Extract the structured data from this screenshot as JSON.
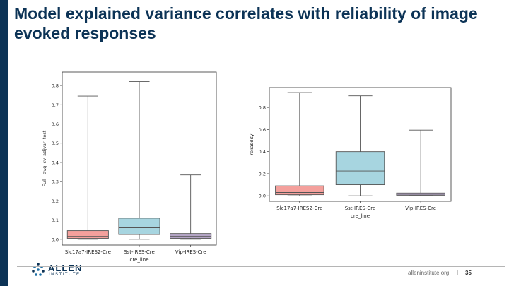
{
  "slide": {
    "title": "Model explained variance correlates with reliability of image evoked responses",
    "footer_url": "alleninstitute.org",
    "footer_separator": "|",
    "page_number": "35",
    "logo": {
      "text_main": "ALLEN",
      "text_sub": "INSTITUTE",
      "icon": "allen-logo-icon"
    },
    "colors": {
      "brand": "#0c3356",
      "slc": "#f4a09c",
      "sst": "#a7d5e0",
      "vip": "#b3a4c4"
    }
  },
  "chart_data": [
    {
      "type": "box",
      "xlabel": "cre_line",
      "ylabel": "Full__avg_cv_adjvar_test",
      "categories": [
        "Slc17a7-IRES2-Cre",
        "Sst-IRES-Cre",
        "Vip-IRES-Cre"
      ],
      "yticks": [
        "0.0",
        "0.1",
        "0.2",
        "0.3",
        "0.4",
        "0.5",
        "0.6",
        "0.7",
        "0.8"
      ],
      "ylim": [
        -0.03,
        0.87
      ],
      "boxes": [
        {
          "name": "Slc17a7-IRES2-Cre",
          "whisker_low": 0.0,
          "q1": 0.005,
          "median": 0.015,
          "q3": 0.045,
          "whisker_high": 0.745,
          "color": "#f4a09c"
        },
        {
          "name": "Sst-IRES-Cre",
          "whisker_low": 0.0,
          "q1": 0.025,
          "median": 0.06,
          "q3": 0.11,
          "whisker_high": 0.82,
          "color": "#a7d5e0"
        },
        {
          "name": "Vip-IRES-Cre",
          "whisker_low": 0.0,
          "q1": 0.005,
          "median": 0.015,
          "q3": 0.03,
          "whisker_high": 0.335,
          "color": "#b3a4c4"
        }
      ]
    },
    {
      "type": "box",
      "xlabel": "cre_line",
      "ylabel": "reliability",
      "categories": [
        "Slc17a7-IRES2-Cre",
        "Sst-IRES-Cre",
        "Vip-IRES-Cre"
      ],
      "yticks": [
        "0.0",
        "0.2",
        "0.4",
        "0.6",
        "0.8"
      ],
      "ylim": [
        -0.05,
        0.98
      ],
      "boxes": [
        {
          "name": "Slc17a7-IRES2-Cre",
          "whisker_low": 0.0,
          "q1": 0.01,
          "median": 0.03,
          "q3": 0.09,
          "whisker_high": 0.935,
          "color": "#f4a09c"
        },
        {
          "name": "Sst-IRES-Cre",
          "whisker_low": 0.0,
          "q1": 0.1,
          "median": 0.225,
          "q3": 0.4,
          "whisker_high": 0.905,
          "color": "#a7d5e0"
        },
        {
          "name": "Vip-IRES-Cre",
          "whisker_low": 0.0,
          "q1": 0.005,
          "median": 0.015,
          "q3": 0.025,
          "whisker_high": 0.595,
          "color": "#b3a4c4"
        }
      ]
    }
  ]
}
